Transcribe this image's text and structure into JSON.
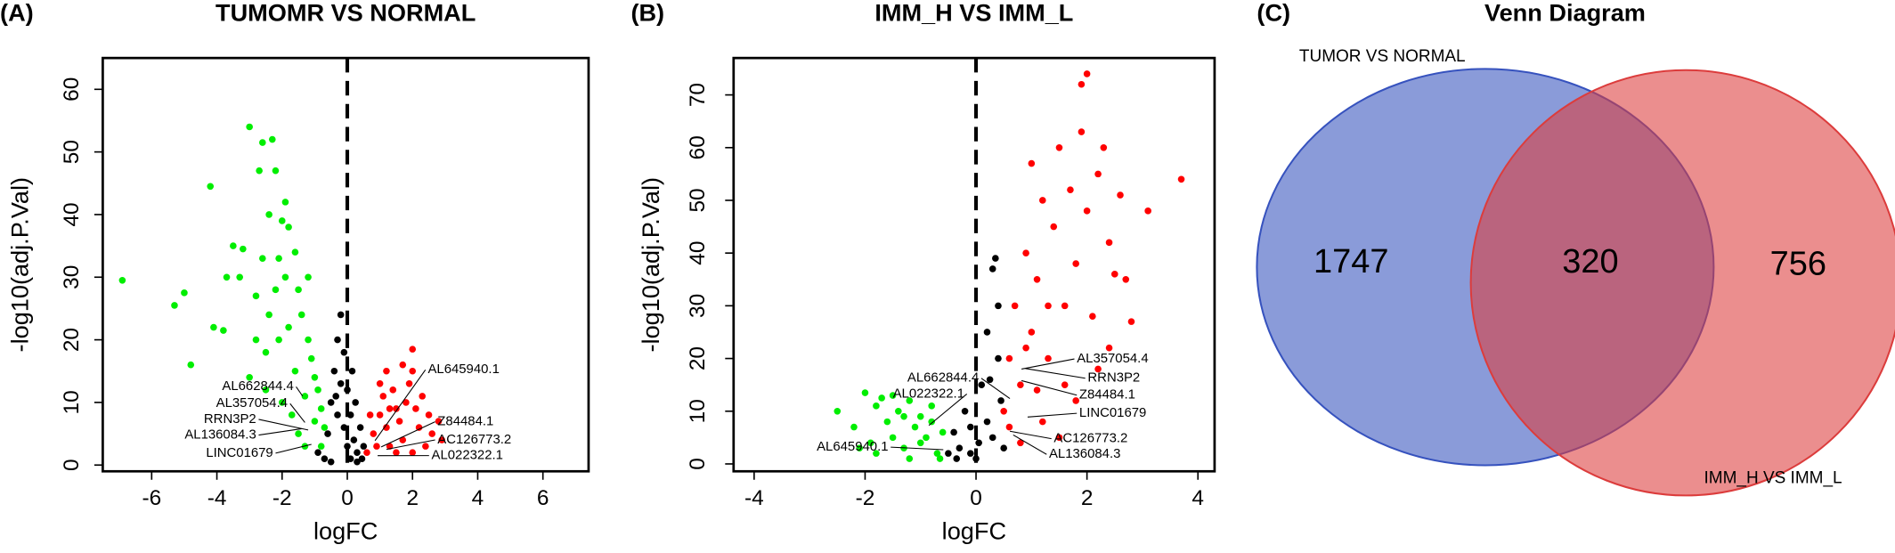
{
  "chart_data": [
    {
      "type": "scatter",
      "panel": "(A)",
      "title": "TUMOMR VS NORMAL",
      "x_label": "logFC",
      "y_label": "-log10(adj.P.Val)",
      "xlim": [
        -7.5,
        7.4
      ],
      "ylim": [
        -1,
        65
      ],
      "xticks": [
        -6,
        -4,
        -2,
        0,
        2,
        4,
        6
      ],
      "yticks": [
        0,
        10,
        20,
        30,
        40,
        50,
        60
      ],
      "vline": 0,
      "series": [
        {
          "color": "#000000",
          "x": [
            -0.9,
            -0.6,
            -0.5,
            -0.4,
            -0.3,
            -0.2,
            -0.1,
            0,
            0.1,
            0.2,
            0.3,
            0.4,
            0.5,
            -0.7,
            -0.3,
            -0.2,
            0.1,
            0.3,
            -0.5,
            0,
            0.15,
            -0.35,
            0.25,
            0.45,
            -0.1
          ],
          "values": [
            2,
            5,
            10,
            15,
            20,
            24,
            18,
            12,
            8,
            4,
            2,
            6,
            3,
            1,
            8,
            13,
            1,
            0.5,
            0.5,
            3,
            15,
            11,
            10,
            1,
            6
          ]
        },
        {
          "color": "#00ee00",
          "x": [
            -6.9,
            -5.3,
            -5,
            -4.8,
            -4.2,
            -4.1,
            -3.8,
            -3.7,
            -3.5,
            -3.2,
            -3,
            -2.8,
            -2.7,
            -2.6,
            -2.5,
            -2.3,
            -2.2,
            -2.1,
            -2,
            -1.9,
            -1.8,
            -1.6,
            -1.5,
            -1.4,
            -1.2,
            -1.1,
            -1,
            -0.9,
            -0.8,
            -0.7,
            -2.5,
            -2,
            -1.7,
            -1.5,
            -1.3,
            -3,
            -2.8,
            -2.4,
            -2.2,
            -1.8,
            -1.6,
            -1.3,
            -1,
            -0.8,
            -2.4,
            -3.3,
            -1.9,
            -1.2,
            -2.6,
            -2.1
          ],
          "values": [
            29.5,
            25.5,
            27.5,
            16,
            44.5,
            22,
            21.5,
            30,
            35,
            34.5,
            54,
            27,
            47,
            51.5,
            18,
            52,
            47,
            33,
            39,
            42,
            38,
            34,
            28,
            24,
            20,
            17,
            14,
            12,
            9,
            6,
            12,
            10,
            8,
            5,
            3,
            14,
            20,
            24,
            28,
            22,
            15,
            11,
            7,
            3,
            40,
            30,
            30,
            30,
            33,
            20
          ]
        },
        {
          "color": "#ff0000",
          "x": [
            0.6,
            0.8,
            1,
            1.1,
            1.2,
            1.3,
            1.4,
            1.5,
            1.6,
            1.7,
            1.8,
            1.9,
            2,
            2,
            2.1,
            2.2,
            2.3,
            2.5,
            2.6,
            2.8,
            1,
            1.2,
            0.9,
            1.5,
            2,
            2.4,
            1.7,
            0.7,
            1.3,
            2.9
          ],
          "values": [
            2,
            5,
            8,
            11,
            6,
            3,
            12,
            9,
            7,
            4,
            10,
            13,
            18.5,
            15,
            9,
            6,
            11,
            8,
            5,
            7,
            13,
            15,
            3,
            2,
            2,
            3,
            16,
            8,
            9,
            4
          ]
        }
      ],
      "annotations": [
        {
          "text": "AL662844.4",
          "x": -1.37,
          "y": 11
        },
        {
          "text": "AL357054.4",
          "x": -1.3,
          "y": 6.8
        },
        {
          "text": "RRN3P2",
          "x": -1.2,
          "y": 5.6
        },
        {
          "text": "AL136084.3",
          "x": -1.4,
          "y": 5.8
        },
        {
          "text": "LINC01679",
          "x": -1.1,
          "y": 3.3
        },
        {
          "text": "AL645940.1",
          "x": 0.85,
          "y": 3.9
        },
        {
          "text": "Z84484.1",
          "x": 1.04,
          "y": 2.9
        },
        {
          "text": "AC126773.2",
          "x": 1.2,
          "y": 2.5
        },
        {
          "text": "AL022322.1",
          "x": 0.93,
          "y": 1.5
        }
      ]
    },
    {
      "type": "scatter",
      "panel": "(B)",
      "title": "IMM_H VS IMM_L",
      "x_label": "logFC",
      "y_label": "-log10(adj.P.Val)",
      "xlim": [
        -4.37,
        4.3
      ],
      "ylim": [
        -1.4,
        77
      ],
      "xticks": [
        -4,
        -2,
        0,
        2,
        4
      ],
      "yticks": [
        0,
        10,
        20,
        30,
        40,
        50,
        60,
        70
      ],
      "vline": 0,
      "series": [
        {
          "color": "#000000",
          "x": [
            -0.5,
            -0.4,
            -0.3,
            -0.2,
            -0.1,
            0,
            0.1,
            0.2,
            0.3,
            0.35,
            0.4,
            0.45,
            0.3,
            0.2,
            -0.1,
            0.05,
            0.4,
            0.25,
            -0.35,
            0.5
          ],
          "values": [
            2,
            6,
            3,
            10,
            7,
            1,
            15,
            25,
            37,
            39,
            20,
            12,
            5,
            8,
            2,
            4,
            30,
            16,
            1,
            3
          ]
        },
        {
          "color": "#00ee00",
          "x": [
            -2.5,
            -2.2,
            -2,
            -1.9,
            -1.8,
            -1.7,
            -1.6,
            -1.5,
            -1.4,
            -1.3,
            -1.2,
            -1.1,
            -1,
            -0.9,
            -0.8,
            -0.7,
            -0.6,
            -1.8,
            -1.5,
            -1.2,
            -1,
            -0.8,
            -2.1,
            -1.3,
            -0.65
          ],
          "values": [
            10,
            7,
            13.5,
            4,
            11,
            12.5,
            8,
            5,
            10,
            3,
            12,
            7,
            9,
            5,
            11,
            2,
            6,
            2,
            13,
            1,
            4,
            8,
            3,
            9,
            1
          ]
        },
        {
          "color": "#ff0000",
          "x": [
            0.5,
            0.6,
            0.7,
            0.8,
            0.9,
            1,
            1,
            1.1,
            1.2,
            1.3,
            1.4,
            1.5,
            1.6,
            1.7,
            1.8,
            1.9,
            1.9,
            2,
            2,
            2.1,
            2.2,
            2.3,
            2.4,
            2.5,
            2.6,
            2.7,
            2.8,
            3.1,
            3.7,
            1.2,
            1.5,
            0.8,
            1.8,
            2.2,
            1.1,
            0.9,
            1.3,
            1.6,
            0.6,
            2.4
          ],
          "values": [
            10,
            20,
            30,
            15,
            40,
            25,
            57,
            35,
            50,
            20,
            45,
            60,
            30,
            52,
            38,
            63,
            72,
            74,
            48,
            28,
            55,
            60,
            42,
            36,
            51,
            35,
            27,
            48,
            54,
            8,
            5,
            4,
            12,
            18,
            14,
            22,
            30,
            15,
            7,
            22
          ]
        }
      ],
      "annotations": [
        {
          "text": "AL662844.4",
          "x": 0.61,
          "y": 12.4
        },
        {
          "text": "AL022322.1",
          "x": -0.85,
          "y": 7.3
        },
        {
          "text": "AL645940.1",
          "x": -0.59,
          "y": 2.7
        },
        {
          "text": "AL357054.4",
          "x": 0.82,
          "y": 18
        },
        {
          "text": "RRN3P2",
          "x": 0.89,
          "y": 18.1
        },
        {
          "text": "Z84484.1",
          "x": 0.82,
          "y": 15.8
        },
        {
          "text": "LINC01679",
          "x": 0.93,
          "y": 8.9
        },
        {
          "text": "AC126773.2",
          "x": 0.61,
          "y": 6.2
        },
        {
          "text": "AL136084.3",
          "x": 0.67,
          "y": 5.5
        }
      ]
    },
    {
      "type": "venn",
      "panel": "(C)",
      "title": "Venn Diagram",
      "sets": [
        {
          "name": "TUMOR VS NORMAL",
          "color": "#3652be"
        },
        {
          "name": "IMM_H VS IMM_L",
          "color": "#dc3c3c"
        }
      ],
      "values": [
        1747,
        320,
        756
      ]
    }
  ]
}
